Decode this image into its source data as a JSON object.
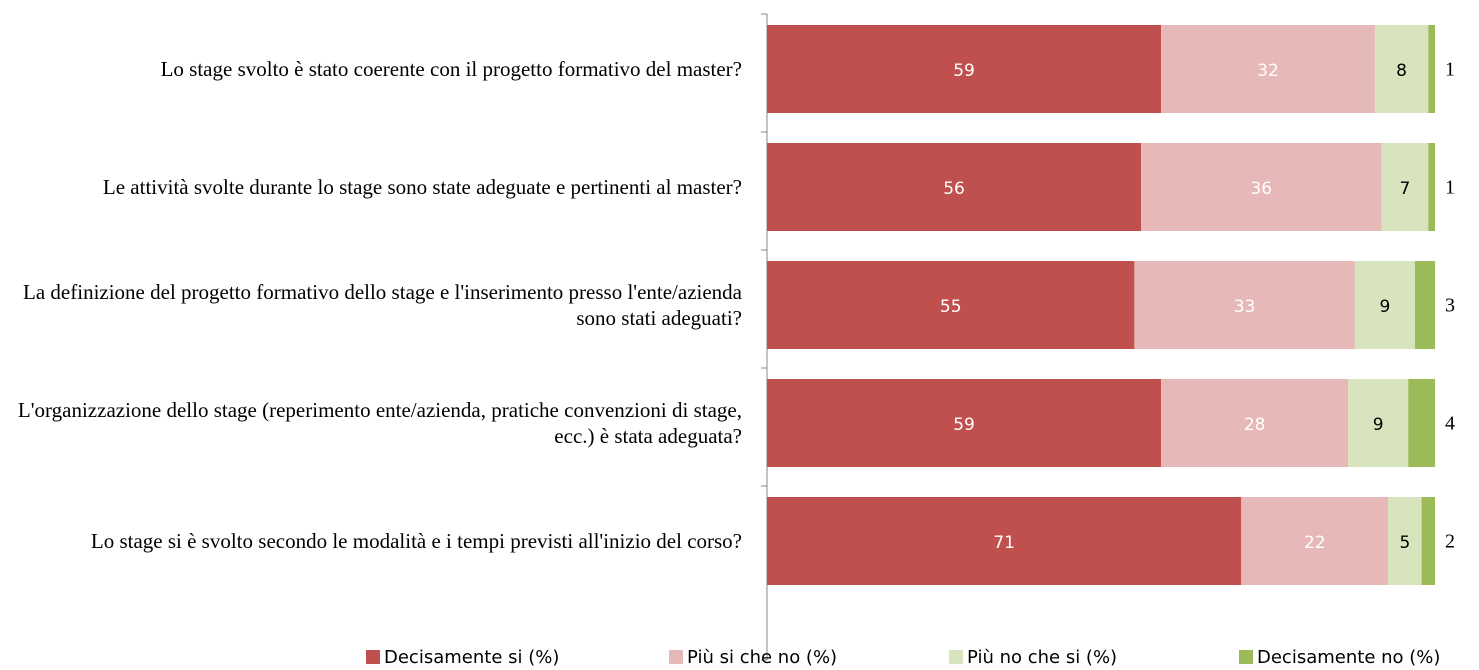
{
  "chart_data": {
    "type": "stacked_barh",
    "categories": [
      "Lo stage svolto è stato coerente con il progetto formativo del master?",
      "Le attività svolte durante lo stage sono state adeguate e pertinenti al master?",
      "La definizione del progetto formativo dello stage e l'inserimento presso l'ente/azienda sono stati adeguati?",
      "L'organizzazione dello stage (reperimento ente/azienda, pratiche convenzioni di stage, ecc.) è stata adeguata?",
      "Lo stage si è svolto secondo le modalità e i tempi previsti all'inizio del corso?"
    ],
    "series": [
      {
        "name": "Decisamente si (%)",
        "color": "#c0504d",
        "values": [
          59,
          56,
          55,
          59,
          71
        ]
      },
      {
        "name": "Più si che no (%)",
        "color": "#e6b9b8",
        "values": [
          32,
          36,
          33,
          28,
          22
        ]
      },
      {
        "name": "Più no che si (%)",
        "color": "#d7e4bd",
        "values": [
          8,
          7,
          9,
          9,
          5
        ]
      },
      {
        "name": "Decisamente no (%)",
        "color": "#9bbb59",
        "values": [
          1,
          1,
          3,
          4,
          2
        ]
      }
    ],
    "xlim": [
      0,
      100
    ],
    "legend": "bottom"
  }
}
